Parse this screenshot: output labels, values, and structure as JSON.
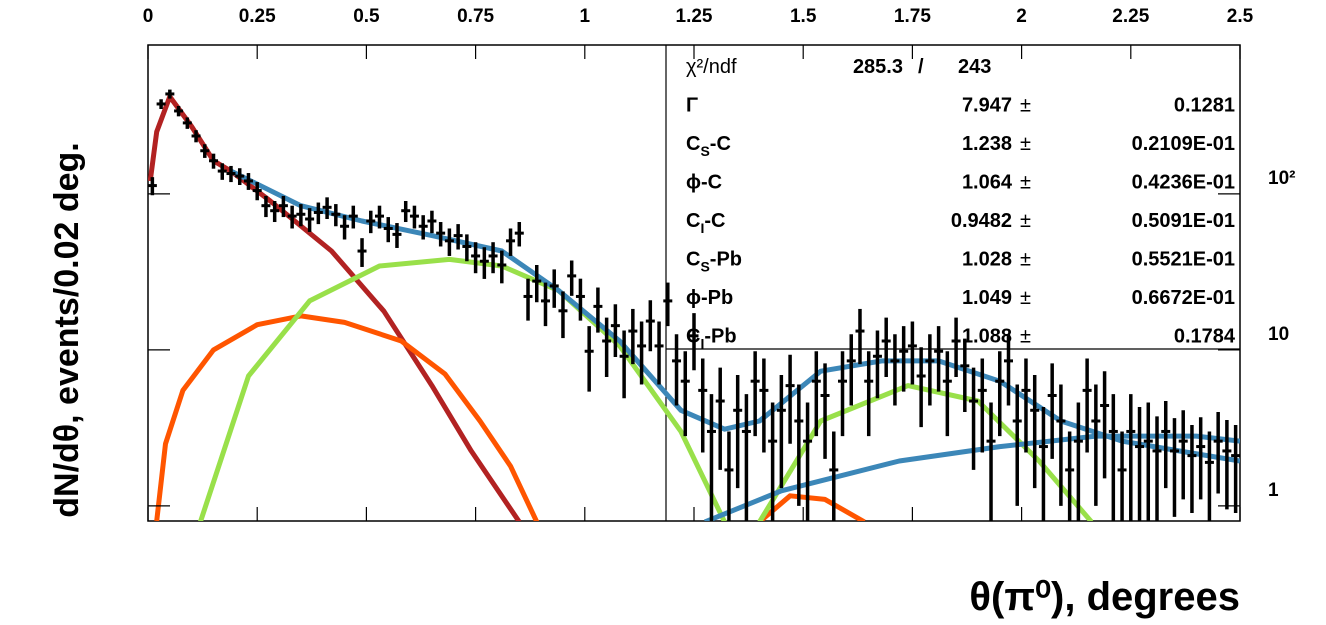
{
  "chart_data": {
    "type": "scatter",
    "y_label": "dN/dθ, events/0.02 deg.",
    "x_label": "θ(π⁰), degrees",
    "log_y": true,
    "xlim": [
      0,
      2.5
    ],
    "ylim": [
      0.8,
      900
    ],
    "xticks": [
      0,
      0.25,
      0.5,
      0.75,
      1,
      1.25,
      1.5,
      1.75,
      2,
      2.25,
      2.5
    ],
    "yticks": [
      1,
      10,
      {
        "value": 100,
        "label": "10²"
      }
    ],
    "points": {
      "color": "#000000",
      "x": [
        0.01,
        0.03,
        0.05,
        0.07,
        0.09,
        0.11,
        0.13,
        0.15,
        0.17,
        0.19,
        0.21,
        0.23,
        0.25,
        0.27,
        0.29,
        0.31,
        0.33,
        0.35,
        0.37,
        0.39,
        0.41,
        0.43,
        0.45,
        0.47,
        0.49,
        0.51,
        0.53,
        0.55,
        0.57,
        0.59,
        0.61,
        0.63,
        0.65,
        0.67,
        0.69,
        0.71,
        0.73,
        0.75,
        0.77,
        0.79,
        0.81,
        0.83,
        0.85,
        0.87,
        0.89,
        0.91,
        0.93,
        0.95,
        0.97,
        0.99,
        1.01,
        1.03,
        1.05,
        1.07,
        1.09,
        1.11,
        1.13,
        1.15,
        1.17,
        1.19,
        1.21,
        1.23,
        1.25,
        1.27,
        1.29,
        1.31,
        1.33,
        1.35,
        1.37,
        1.39,
        1.41,
        1.43,
        1.45,
        1.47,
        1.49,
        1.51,
        1.53,
        1.55,
        1.57,
        1.59,
        1.61,
        1.63,
        1.65,
        1.67,
        1.69,
        1.71,
        1.73,
        1.75,
        1.77,
        1.79,
        1.81,
        1.83,
        1.85,
        1.87,
        1.89,
        1.91,
        1.93,
        1.95,
        1.97,
        1.99,
        2.01,
        2.03,
        2.05,
        2.07,
        2.09,
        2.11,
        2.13,
        2.15,
        2.17,
        2.19,
        2.21,
        2.23,
        2.25,
        2.27,
        2.29,
        2.31,
        2.33,
        2.35,
        2.37,
        2.39,
        2.41,
        2.43,
        2.45,
        2.47,
        2.49
      ],
      "values": [
        113,
        377,
        437,
        340,
        285,
        235,
        189,
        163,
        140,
        135,
        130,
        121,
        105,
        84,
        78,
        84,
        72,
        74,
        69,
        76,
        82,
        74,
        62,
        72,
        43,
        67,
        72,
        60,
        55,
        78,
        72,
        62,
        67,
        56,
        50,
        54,
        46,
        40,
        37,
        40,
        35,
        50,
        56,
        22,
        27.6,
        20.6,
        25.7,
        17.8,
        29.8,
        22,
        9.8,
        19,
        11.4,
        14.3,
        9.1,
        13.2,
        10.6,
        15.3,
        10.6,
        20.6,
        8.5,
        6.3,
        12.3,
        5.5,
        3.0,
        4.7,
        1.7,
        4.1,
        3.0,
        6.3,
        5.5,
        2.6,
        4.1,
        5.9,
        3.5,
        2.6,
        6.3,
        5.1,
        1.7,
        6.3,
        8.5,
        13.2,
        6.3,
        9.1,
        11.4,
        8.5,
        9.8,
        10.6,
        6.8,
        8.5,
        9.8,
        6.3,
        11.4,
        7.9,
        4.7,
        5.5,
        2.6,
        6.3,
        8.5,
        3.5,
        5.5,
        4.1,
        2.4,
        5.1,
        3.5,
        1.7,
        2.6,
        5.5,
        3.5,
        4.4,
        3.0,
        1.7,
        3.0,
        2.4,
        2.6,
        2.25,
        3.0,
        2.25,
        2.6,
        2.1,
        2.4,
        1.9,
        2.6,
        2.25,
        2.1
      ],
      "errors": [
        15,
        27,
        29,
        26,
        24,
        21,
        19,
        18,
        17,
        16,
        16,
        15,
        14,
        13,
        12,
        13,
        12,
        12,
        12,
        12,
        13,
        12,
        11,
        12,
        9,
        11,
        12,
        11,
        10,
        12,
        12,
        11,
        11,
        10,
        10,
        10,
        9,
        9,
        8.5,
        9,
        8.3,
        10,
        10,
        6.6,
        7.4,
        6.4,
        7.1,
        5.9,
        7.6,
        6.6,
        4.4,
        6.1,
        4.7,
        5.3,
        4.2,
        5.1,
        4.6,
        5.5,
        4.6,
        6.4,
        4.1,
        3.5,
        4.9,
        3.3,
        2.2,
        3.0,
        1.3,
        2.8,
        2.2,
        3.5,
        3.3,
        2.0,
        2.8,
        3.4,
        2.5,
        2.0,
        3.5,
        3.1,
        1.3,
        3.5,
        4.1,
        5.1,
        3.5,
        4.2,
        4.7,
        4.1,
        4.4,
        4.6,
        3.6,
        4.1,
        4.4,
        3.5,
        4.7,
        3.9,
        3.0,
        3.3,
        2.0,
        3.5,
        4.1,
        2.5,
        3.3,
        2.8,
        1.9,
        3.1,
        2.5,
        1.3,
        2.0,
        3.3,
        2.5,
        2.9,
        2.2,
        1.3,
        2.2,
        1.9,
        2.0,
        1.5,
        1.7,
        1.4,
        1.5,
        1.2,
        1.3,
        1.1,
        1.4,
        1.3,
        1.2
      ]
    },
    "curves": [
      {
        "color": "#b22222",
        "x": [
          0.005,
          0.02,
          0.05,
          0.1,
          0.15,
          0.19,
          0.28,
          0.42,
          0.54,
          0.65,
          0.74,
          0.85
        ],
        "values": [
          121,
          250,
          420,
          270,
          163,
          140,
          90,
          43,
          17.7,
          5.9,
          2.25,
          0.79
        ]
      },
      {
        "color": "#ff5500",
        "x": [
          0.02,
          0.04,
          0.08,
          0.15,
          0.25,
          0.35,
          0.45,
          0.58,
          0.68,
          0.76,
          0.83,
          0.89,
          1.2,
          1.4,
          1.47,
          1.55,
          1.64
        ],
        "values": [
          0.8,
          2.5,
          5.5,
          10,
          14.5,
          16.5,
          15,
          11.4,
          7,
          3.5,
          1.8,
          0.79,
          null,
          0.79,
          1.16,
          1.1,
          0.79
        ]
      },
      {
        "color": "#99e04a",
        "x": [
          0.12,
          0.23,
          0.37,
          0.53,
          0.69,
          0.81,
          0.94,
          1.08,
          1.22,
          1.32,
          1.36,
          1.4,
          1.54,
          1.74,
          1.9,
          2.04,
          2.16
        ],
        "values": [
          0.79,
          6.8,
          20.6,
          34.5,
          38,
          34.5,
          24,
          10.6,
          3.0,
          0.79,
          null,
          0.79,
          3.5,
          5.9,
          4.7,
          1.94,
          0.79
        ]
      },
      {
        "color": "#3c87b8",
        "x": [
          0.19,
          0.35,
          0.49,
          0.65,
          0.81,
          0.94,
          1.08,
          1.22,
          1.32,
          1.4,
          1.54,
          1.68,
          1.81,
          1.95,
          2.09,
          2.23,
          2.36,
          2.5
        ],
        "values": [
          140,
          84,
          67,
          54,
          43,
          24,
          11.4,
          4.1,
          3.1,
          3.5,
          7.3,
          8.5,
          8.5,
          6.3,
          3.5,
          2.6,
          2.25,
          1.94
        ]
      },
      {
        "color": "#3c87b8",
        "x": [
          1.275,
          1.45,
          1.72,
          1.95,
          2.17,
          2.4,
          2.5
        ],
        "values": [
          0.79,
          1.25,
          1.94,
          2.4,
          2.8,
          2.8,
          2.6
        ]
      }
    ],
    "stats": {
      "chi2_label": "χ²/ndf",
      "chi2": "285.3",
      "separator": "/",
      "ndf": "243",
      "pm": "±",
      "params": [
        {
          "name": "Γ",
          "value": "7.947",
          "error": "0.1281"
        },
        {
          "name": "C",
          "sub": "S",
          "suffix": "-C",
          "value": "1.238",
          "error": "0.2109E-01"
        },
        {
          "name": "ϕ-C",
          "value": "1.064",
          "error": "0.4236E-01"
        },
        {
          "name": "C",
          "sub": "I",
          "suffix": "-C",
          "value": "0.9482",
          "error": "0.5091E-01"
        },
        {
          "name": "C",
          "sub": "S",
          "suffix": "-Pb",
          "value": "1.028",
          "error": "0.5521E-01"
        },
        {
          "name": "ϕ-Pb",
          "value": "1.049",
          "error": "0.6672E-01"
        },
        {
          "name": "C",
          "sub": "I",
          "suffix": "-Pb",
          "value": "1.088",
          "error": "0.1784"
        }
      ]
    }
  }
}
